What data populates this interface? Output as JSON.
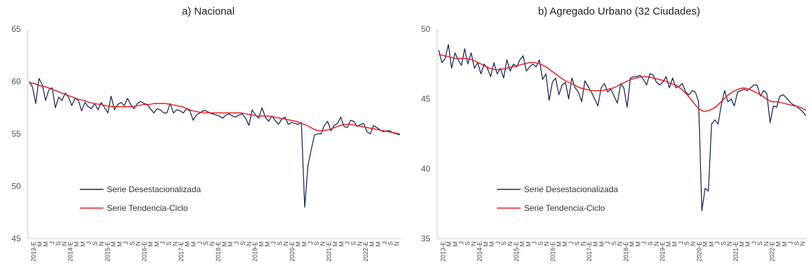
{
  "chart_data": [
    {
      "type": "line",
      "title": "a) Nacional",
      "xlabel": "",
      "ylabel": "",
      "ylim": [
        45,
        65
      ],
      "yticks": [
        45,
        50,
        55,
        60,
        65
      ],
      "grid": false,
      "legend_position": "lower-left",
      "x_labels": [
        "2013-E",
        "M",
        "M",
        "J",
        "S",
        "N",
        "2014-E",
        "M",
        "M",
        "J",
        "S",
        "N",
        "2015-E",
        "M",
        "M",
        "J",
        "S",
        "N",
        "2016-E",
        "M",
        "M",
        "J",
        "S",
        "N",
        "2017-E",
        "M",
        "M",
        "J",
        "S",
        "N",
        "2018-E",
        "M",
        "M",
        "J",
        "S",
        "N",
        "2019-E",
        "M",
        "M",
        "J",
        "S",
        "N",
        "2020-E",
        "M",
        "M",
        "J",
        "S",
        "N",
        "2021-E",
        "M",
        "M",
        "J",
        "S",
        "N",
        "2022-E",
        "M",
        "M",
        "J",
        "S",
        "N"
      ],
      "series": [
        {
          "name": "Serie Desestacionalizada",
          "color": "#1f2a5a",
          "values": [
            60.0,
            59.5,
            57.9,
            60.3,
            59.7,
            58.2,
            59.2,
            59.4,
            57.5,
            58.5,
            58.2,
            58.9,
            58.5,
            57.7,
            58.4,
            58.2,
            57.2,
            58.0,
            57.6,
            57.4,
            57.9,
            57.3,
            58.0,
            57.5,
            57.0,
            58.6,
            57.3,
            57.8,
            58.0,
            57.7,
            58.4,
            57.8,
            57.4,
            57.9,
            58.1,
            57.9,
            57.8,
            57.4,
            57.0,
            57.4,
            57.3,
            57.0,
            57.0,
            57.9,
            57.0,
            57.3,
            57.2,
            57.0,
            57.4,
            57.2,
            56.3,
            56.8,
            57.0,
            57.2,
            57.2,
            57.0,
            56.9,
            56.8,
            56.7,
            56.5,
            56.8,
            56.9,
            56.7,
            56.6,
            56.8,
            56.9,
            56.5,
            55.8,
            57.3,
            56.8,
            56.5,
            57.5,
            56.6,
            56.2,
            56.7,
            56.3,
            55.9,
            56.4,
            56.6,
            55.9,
            56.1,
            56.0,
            55.9,
            56.1,
            48.0,
            52.0,
            53.5,
            54.9,
            55.0,
            55.0,
            55.8,
            56.2,
            55.3,
            55.8,
            56.0,
            56.6,
            55.7,
            55.6,
            56.3,
            56.2,
            55.7,
            55.9,
            56.0,
            55.2,
            55.0,
            55.8,
            55.6,
            55.4,
            55.2,
            55.3,
            55.3,
            55.1,
            55.0,
            54.9
          ],
          "note": "bi-monthly labels; monthly data approximated"
        },
        {
          "name": "Serie Tendencia-Ciclo",
          "color": "#e8201e",
          "values": [
            59.9,
            59.8,
            59.6,
            59.5,
            59.3,
            59.1,
            58.9,
            58.7,
            58.5,
            58.3,
            58.2,
            58.0,
            57.9,
            57.8,
            57.7,
            57.6,
            57.6,
            57.6,
            57.6,
            57.6,
            57.7,
            57.8,
            57.8,
            57.9,
            57.9,
            57.9,
            57.8,
            57.7,
            57.6,
            57.4,
            57.2,
            57.1,
            57.0,
            57.0,
            57.0,
            57.0,
            57.0,
            57.0,
            57.0,
            57.0,
            56.9,
            56.8,
            56.7,
            56.7,
            56.7,
            56.6,
            56.5,
            56.4,
            56.3,
            56.2,
            56.0,
            55.8,
            55.5,
            55.3,
            55.3,
            55.4,
            55.6,
            55.8,
            55.9,
            55.9,
            55.8,
            55.7,
            55.6,
            55.5,
            55.4,
            55.3,
            55.2,
            55.1,
            55.0
          ]
        }
      ]
    },
    {
      "type": "line",
      "title": "b) Agregado Urbano (32 Ciudades)",
      "xlabel": "",
      "ylabel": "",
      "ylim": [
        35,
        50
      ],
      "yticks": [
        35,
        40,
        45,
        50
      ],
      "grid": false,
      "legend_position": "lower-left",
      "x_labels": [
        "2013-E",
        "M",
        "M",
        "J",
        "S",
        "N",
        "2014-E",
        "M",
        "M",
        "J",
        "S",
        "N",
        "2015-E",
        "M",
        "M",
        "J",
        "S",
        "N",
        "2016-E",
        "M",
        "M",
        "J",
        "S",
        "N",
        "2017-E",
        "M",
        "M",
        "J",
        "S",
        "N",
        "2018-E",
        "M",
        "M",
        "J",
        "S",
        "N",
        "2019-E",
        "M",
        "M",
        "J",
        "S",
        "N",
        "2020-E",
        "M",
        "M",
        "J",
        "S",
        "N",
        "2021-E",
        "M",
        "M",
        "J",
        "S",
        "N",
        "2022-E",
        "M",
        "M",
        "J",
        "S",
        "N"
      ],
      "series": [
        {
          "name": "Serie Desestacionalizada",
          "color": "#1f2a5a",
          "values": [
            48.5,
            47.6,
            47.9,
            48.9,
            47.2,
            48.3,
            47.8,
            47.4,
            48.6,
            47.5,
            48.3,
            47.2,
            47.6,
            46.8,
            47.5,
            47.2,
            46.6,
            47.6,
            46.8,
            47.2,
            46.5,
            47.8,
            47.0,
            47.5,
            47.3,
            47.8,
            48.1,
            47.0,
            47.3,
            47.5,
            47.3,
            47.8,
            46.4,
            46.8,
            44.9,
            46.2,
            46.5,
            45.3,
            46.0,
            46.2,
            45.0,
            46.5,
            45.8,
            45.5,
            44.8,
            46.3,
            45.9,
            45.5,
            45.0,
            44.5,
            45.8,
            46.1,
            45.5,
            45.7,
            45.2,
            44.7,
            46.1,
            45.8,
            44.4,
            46.5,
            46.6,
            46.6,
            46.7,
            46.4,
            46.0,
            46.8,
            46.7,
            46.2,
            46.0,
            46.2,
            46.6,
            45.8,
            46.5,
            45.8,
            45.9,
            46.1,
            45.5,
            45.3,
            45.6,
            45.5,
            44.8,
            37.0,
            38.6,
            38.4,
            43.2,
            43.5,
            43.2,
            44.6,
            45.6,
            44.8,
            45.0,
            44.5,
            45.5,
            45.6,
            45.7,
            45.6,
            45.8,
            46.0,
            46.0,
            45.2,
            45.6,
            45.4,
            43.3,
            44.5,
            44.4,
            45.2,
            45.3,
            45.1,
            44.8,
            44.6,
            44.5,
            44.3,
            44.1,
            43.8
          ]
        },
        {
          "name": "Serie Tendencia-Ciclo",
          "color": "#e8201e",
          "values": [
            48.2,
            48.1,
            48.0,
            47.9,
            47.9,
            47.9,
            47.8,
            47.6,
            47.4,
            47.2,
            47.1,
            47.1,
            47.2,
            47.3,
            47.4,
            47.5,
            47.6,
            47.6,
            47.5,
            47.3,
            47.0,
            46.7,
            46.4,
            46.2,
            46.0,
            45.8,
            45.7,
            45.6,
            45.6,
            45.6,
            45.7,
            45.8,
            46.0,
            46.2,
            46.4,
            46.5,
            46.6,
            46.6,
            46.5,
            46.4,
            46.3,
            46.1,
            46.0,
            45.7,
            45.3,
            44.8,
            44.3,
            44.1,
            44.2,
            44.4,
            44.8,
            45.2,
            45.5,
            45.7,
            45.8,
            45.7,
            45.5,
            45.3,
            45.0,
            44.8,
            44.8,
            44.7,
            44.6,
            44.5,
            44.4,
            44.2
          ]
        }
      ]
    }
  ]
}
